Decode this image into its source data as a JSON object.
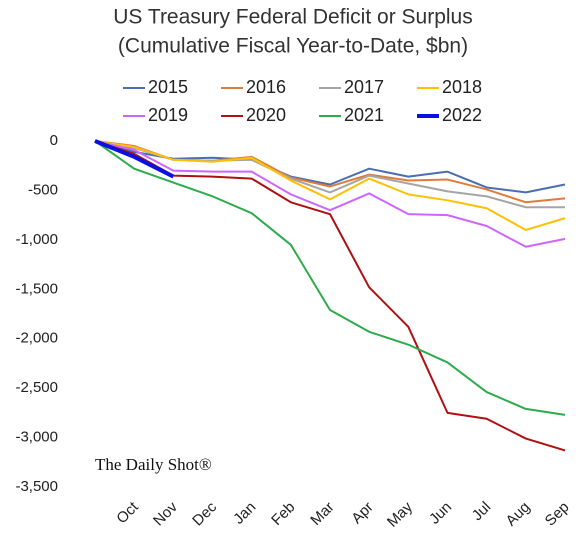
{
  "chart_data": {
    "type": "line",
    "title": "US Treasury Federal Deficit or Surplus",
    "subtitle": "(Cumulative Fiscal Year-to-Date, $bn)",
    "watermark": "The Daily Shot®",
    "categories": [
      null,
      "Oct",
      "Nov",
      "Dec",
      "Jan",
      "Feb",
      "Mar",
      "Apr",
      "May",
      "Jun",
      "Jul",
      "Aug",
      "Sep"
    ],
    "series": [
      {
        "name": "2015",
        "color": "#4a6fb0",
        "values": [
          0,
          -110,
          -180,
          -170,
          -190,
          -360,
          -440,
          -280,
          -360,
          -310,
          -470,
          -520,
          -440
        ]
      },
      {
        "name": "2016",
        "color": "#e07b3c",
        "values": [
          0,
          -50,
          -190,
          -200,
          -160,
          -370,
          -460,
          -340,
          -400,
          -390,
          -490,
          -620,
          -580
        ]
      },
      {
        "name": "2017",
        "color": "#a5a5a5",
        "values": [
          0,
          -70,
          -190,
          -200,
          -190,
          -380,
          -520,
          -350,
          -430,
          -510,
          -560,
          -670,
          -670
        ]
      },
      {
        "name": "2018",
        "color": "#ffc000",
        "values": [
          0,
          -60,
          -190,
          -210,
          -170,
          -400,
          -590,
          -380,
          -540,
          -600,
          -680,
          -900,
          -780
        ]
      },
      {
        "name": "2019",
        "color": "#cc66ff",
        "values": [
          0,
          -90,
          -300,
          -310,
          -310,
          -540,
          -700,
          -530,
          -740,
          -750,
          -860,
          -1070,
          -990
        ]
      },
      {
        "name": "2020",
        "color": "#b01010",
        "values": [
          0,
          -130,
          -350,
          -360,
          -380,
          -620,
          -740,
          -1480,
          -1880,
          -2750,
          -2810,
          -3010,
          -3130
        ]
      },
      {
        "name": "2021",
        "color": "#2eab4a",
        "values": [
          0,
          -280,
          -420,
          -560,
          -730,
          -1050,
          -1710,
          -1930,
          -2060,
          -2240,
          -2540,
          -2710,
          -2770
        ]
      },
      {
        "name": "2022",
        "color": "#0a10e0",
        "width": 4,
        "values": [
          0,
          -160,
          -360,
          null,
          null,
          null,
          null,
          null,
          null,
          null,
          null,
          null,
          null
        ]
      }
    ],
    "ylim": [
      -3500,
      0
    ],
    "yticks": [
      0,
      -500,
      {
        "value": -1000,
        "label": "-1,000"
      },
      {
        "value": -1500,
        "label": "-1,500"
      },
      {
        "value": -2000,
        "label": "-2,000"
      },
      {
        "value": -2500,
        "label": "-2,500"
      },
      {
        "value": -3000,
        "label": "-3,000"
      },
      {
        "value": -3500,
        "label": "-3,500"
      }
    ],
    "grid": false,
    "legend": "top"
  }
}
